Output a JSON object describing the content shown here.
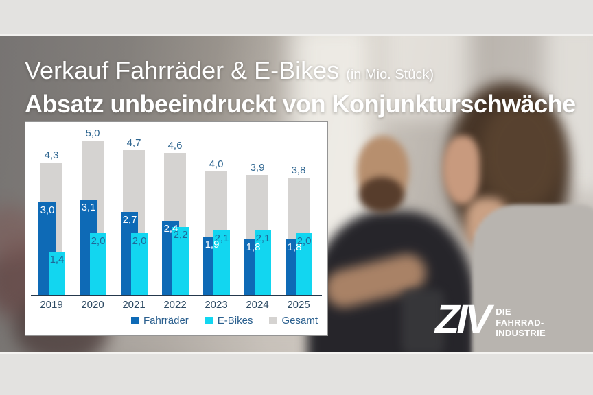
{
  "header": {
    "title": "Verkauf Fahrräder & E-Bikes",
    "title_unit": "(in Mio. Stück)",
    "subtitle": "Absatz unbeeindruckt von Konjunkturschwäche"
  },
  "chart_data": {
    "type": "bar",
    "title": "Verkauf Fahrräder & E-Bikes (in Mio. Stück)",
    "categories": [
      "2019",
      "2020",
      "2021",
      "2022",
      "2023",
      "2024",
      "2025"
    ],
    "series": [
      {
        "name": "Fahrräder",
        "color": "#0e6ab6",
        "label_color": "#ffffff",
        "values": [
          3.0,
          3.1,
          2.7,
          2.4,
          1.9,
          1.8,
          1.8
        ]
      },
      {
        "name": "E-Bikes",
        "color": "#12d6f0",
        "label_color": "#1f6898",
        "values": [
          1.4,
          2.0,
          2.0,
          2.2,
          2.1,
          2.1,
          2.0
        ]
      },
      {
        "name": "Gesamt",
        "color": "#d5d3d1",
        "label_color": "#2f6690",
        "values": [
          4.3,
          5.0,
          4.7,
          4.6,
          4.0,
          3.9,
          3.8
        ]
      }
    ],
    "unit": "Mio. Stück",
    "ylim": [
      0,
      5.5
    ],
    "reference_line": 1.4,
    "grid": false,
    "legend_position": "bottom",
    "value_labels": "de-comma-1dp",
    "axis_label_color": "#2d4a63",
    "axis_line_color": "#25384c",
    "legend_text_color": "#2a5f8e"
  },
  "logo": {
    "name": "ZIV",
    "tagline_lines": [
      "DIE",
      "FAHRRAD-",
      "INDUSTRIE"
    ]
  },
  "colors": {
    "band": "#e3e2e0",
    "panel_bg": "#ffffff",
    "panel_border": "#949494",
    "title_text": "#ffffff"
  }
}
